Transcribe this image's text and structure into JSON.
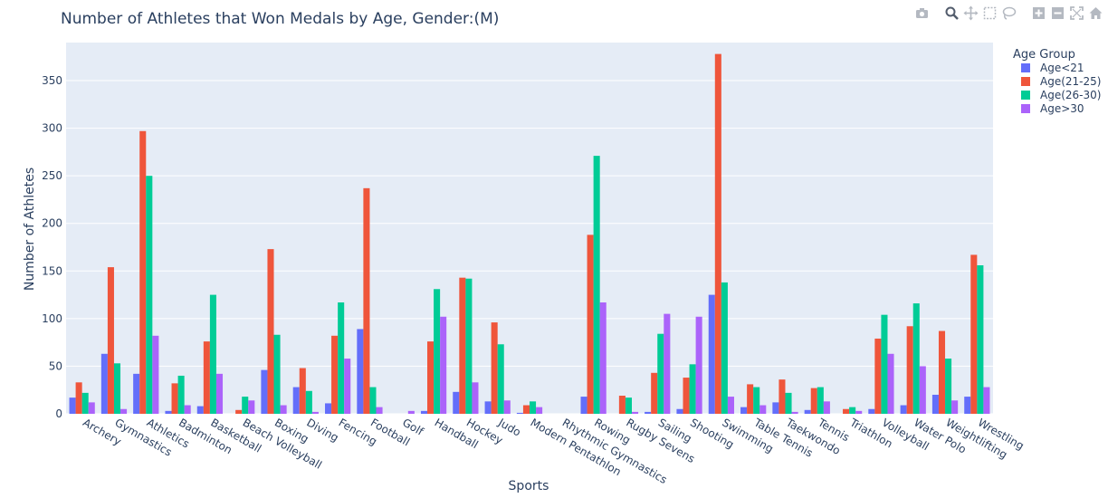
{
  "chart_data": {
    "type": "bar",
    "title": "Number of Athletes that Won Medals by Age, Gender:(M)",
    "xlabel": "Sports",
    "ylabel": "Number of Athletes",
    "ylim": [
      0,
      390
    ],
    "yticks": [
      0,
      50,
      100,
      150,
      200,
      250,
      300,
      350
    ],
    "grid": true,
    "legend_title": "Age Group",
    "legend_position": "top-right",
    "categories": [
      "Archery",
      "Gymnastics",
      "Athletics",
      "Badminton",
      "Basketball",
      "Beach Volleyball",
      "Boxing",
      "Diving",
      "Fencing",
      "Football",
      "Golf",
      "Handball",
      "Hockey",
      "Judo",
      "Modern Pentathlon",
      "Rhythmic Gymnastics",
      "Rowing",
      "Rugby Sevens",
      "Sailing",
      "Shooting",
      "Swimming",
      "Table Tennis",
      "Taekwondo",
      "Tennis",
      "Triathlon",
      "Volleyball",
      "Water Polo",
      "Weightlifting",
      "Wrestling"
    ],
    "series": [
      {
        "name": "Age<21",
        "color": "#636efa",
        "values": [
          17,
          63,
          42,
          3,
          8,
          0,
          46,
          28,
          11,
          89,
          0,
          3,
          23,
          13,
          1,
          0,
          18,
          0,
          2,
          5,
          125,
          7,
          12,
          4,
          0,
          5,
          9,
          20,
          18
        ]
      },
      {
        "name": "Age(21-25)",
        "color": "#ef553b",
        "values": [
          33,
          154,
          297,
          32,
          76,
          4,
          173,
          48,
          82,
          237,
          0,
          76,
          143,
          96,
          9,
          0,
          188,
          19,
          43,
          38,
          378,
          31,
          36,
          27,
          5,
          79,
          92,
          87,
          167
        ]
      },
      {
        "name": "Age(26-30)",
        "color": "#00cc96",
        "values": [
          22,
          53,
          250,
          40,
          125,
          18,
          83,
          24,
          117,
          28,
          0,
          131,
          142,
          73,
          13,
          0,
          271,
          17,
          84,
          52,
          138,
          28,
          22,
          28,
          7,
          104,
          116,
          58,
          156
        ]
      },
      {
        "name": "Age>30",
        "color": "#ab63fa",
        "values": [
          12,
          5,
          82,
          9,
          42,
          14,
          9,
          2,
          58,
          7,
          3,
          102,
          33,
          14,
          7,
          0,
          117,
          2,
          105,
          102,
          18,
          9,
          2,
          13,
          3,
          63,
          50,
          14,
          28
        ]
      }
    ]
  },
  "modebar": [
    "camera-icon",
    "zoom-icon",
    "pan-icon",
    "box-select-icon",
    "lasso-select-icon",
    "zoom-in-icon",
    "zoom-out-icon",
    "autoscale-icon",
    "reset-axes-icon",
    "plotly-logo-icon"
  ]
}
